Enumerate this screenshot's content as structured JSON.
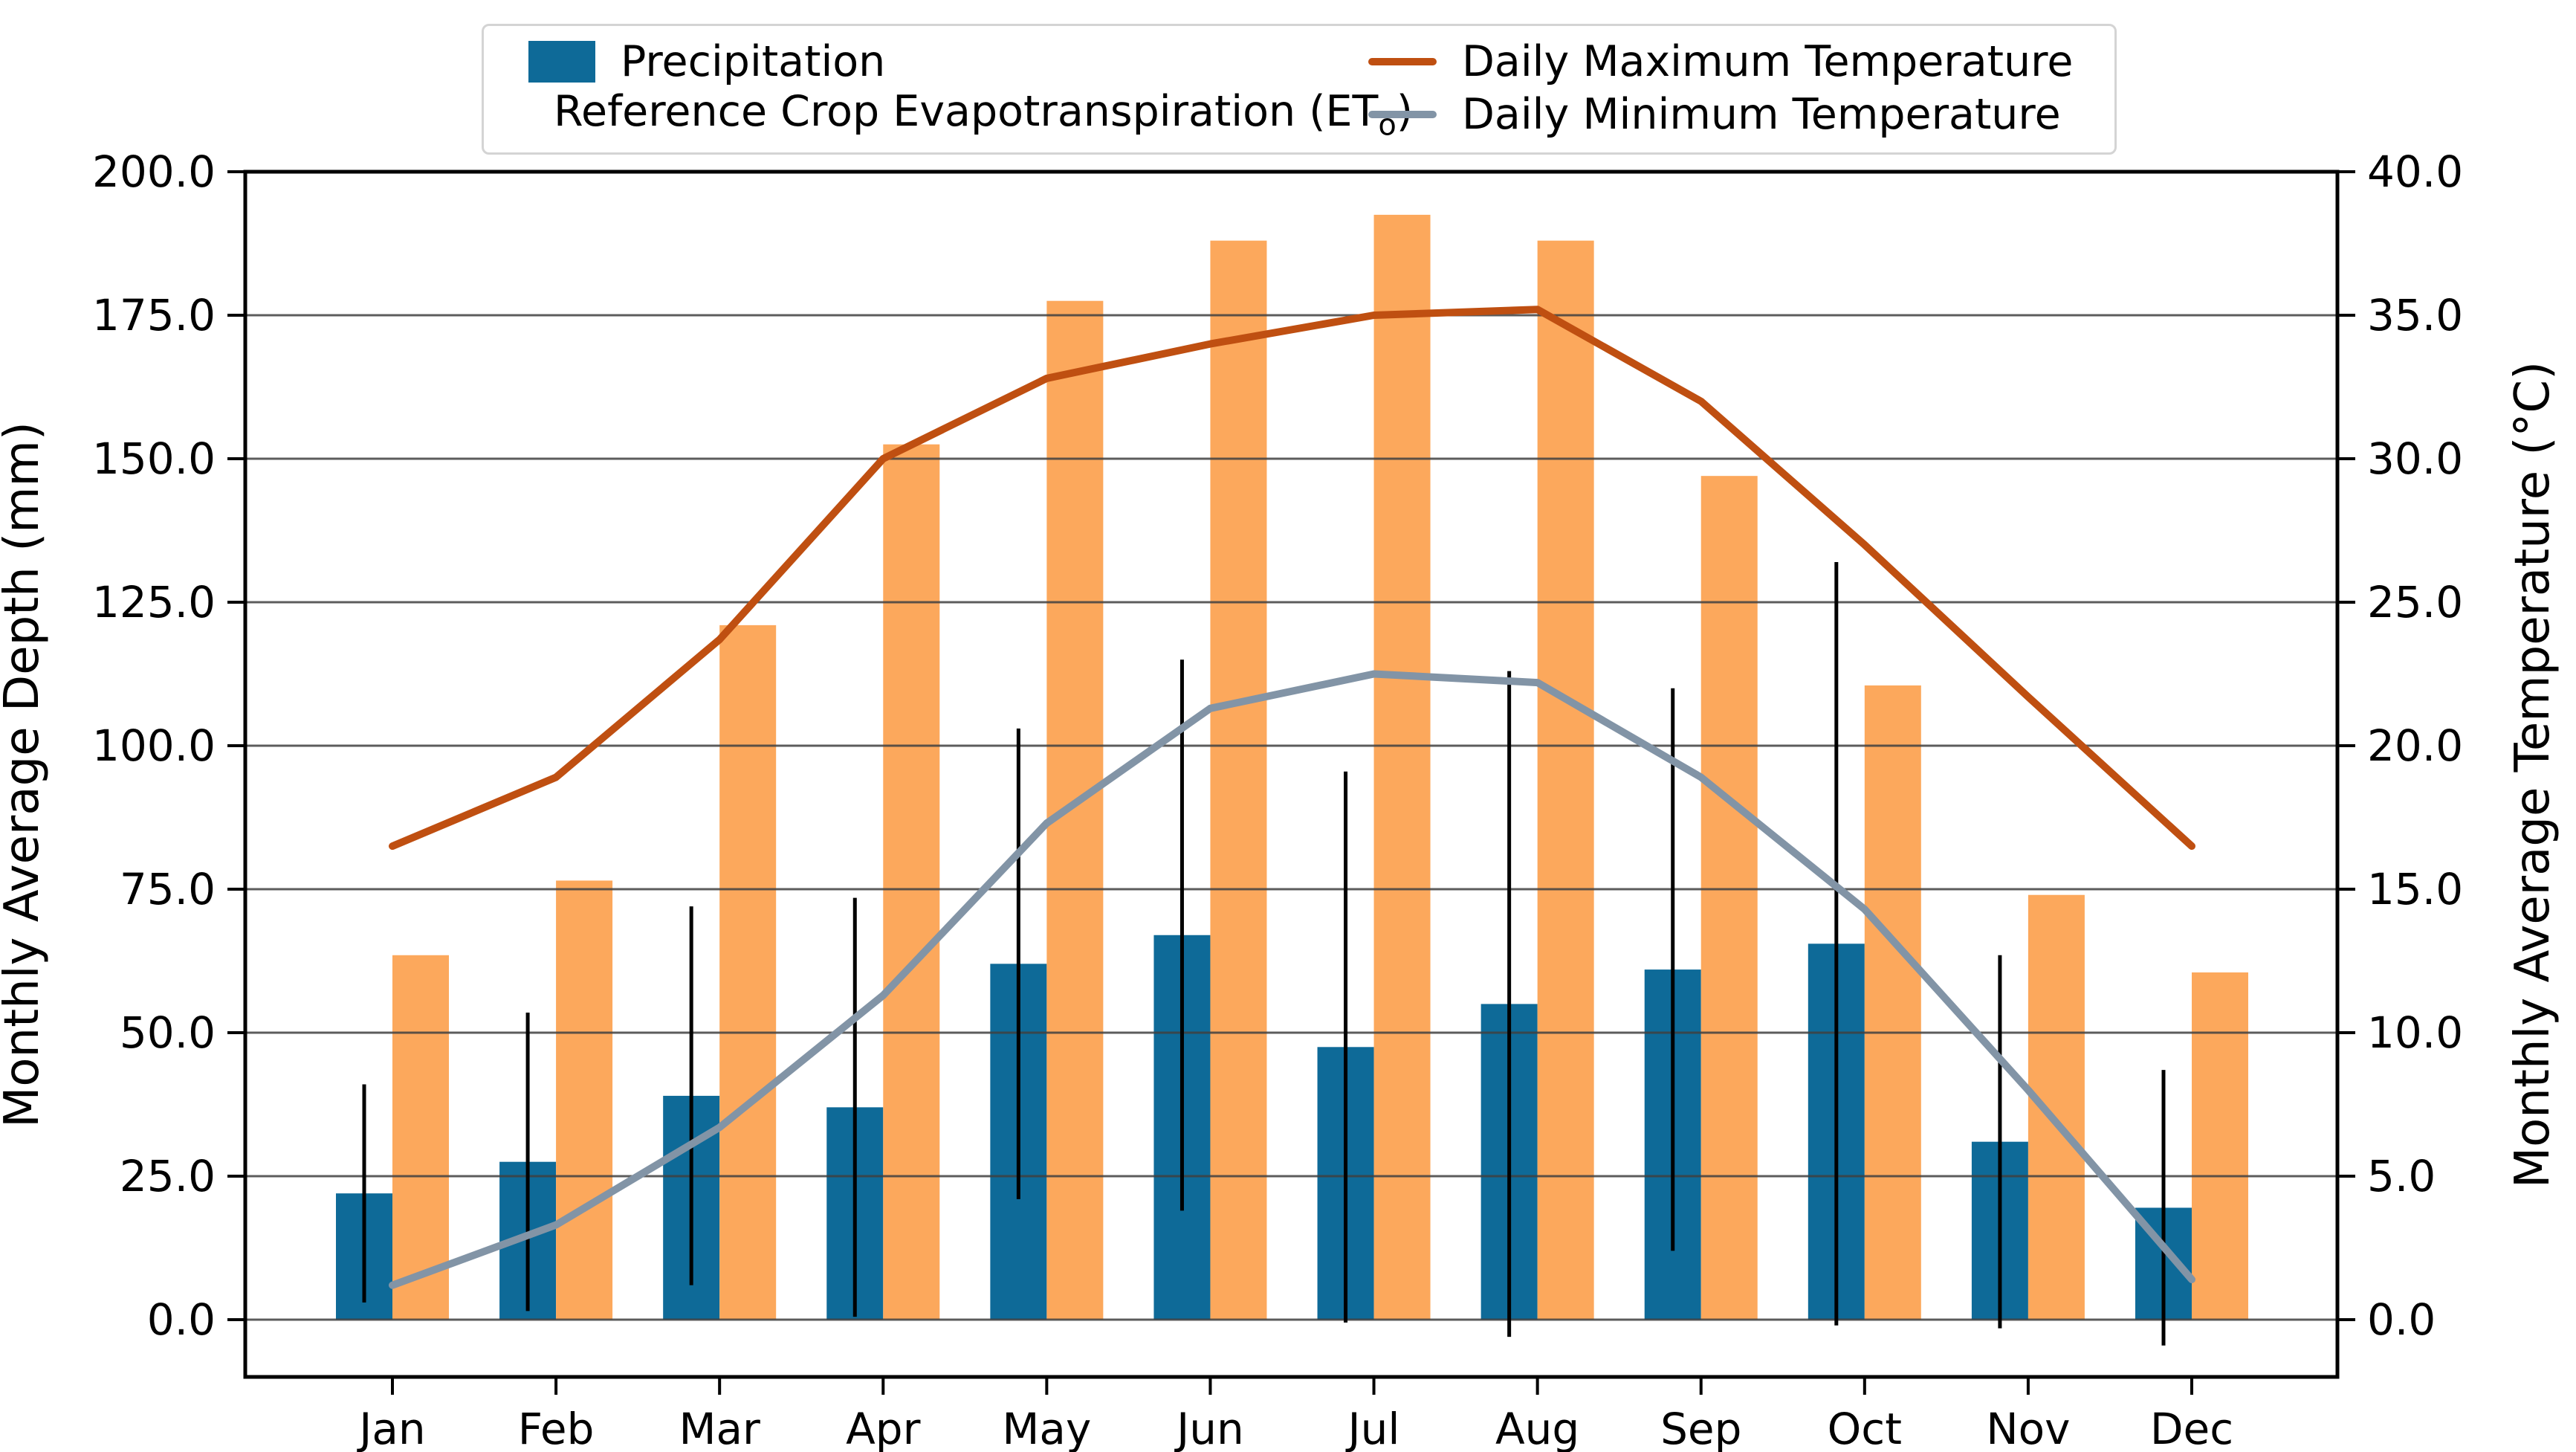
{
  "legend": {
    "precip_label": "Precipitation",
    "eto_label_pre": "Reference Crop Evapotranspiration (ET",
    "eto_label_sub": "o",
    "eto_label_post": ")",
    "tmax_label": "Daily Maximum Temperature",
    "tmin_label": "Daily Minimum Temperature"
  },
  "axes": {
    "ylabel_left": "Monthly Average Depth (mm)",
    "ylabel_right": "Monthly Average Temperature (°C)",
    "left_ticks": [
      "0.0",
      "25.0",
      "50.0",
      "75.0",
      "100.0",
      "125.0",
      "150.0",
      "175.0",
      "200.0"
    ],
    "right_ticks": [
      "0.0",
      "5.0",
      "10.0",
      "15.0",
      "20.0",
      "25.0",
      "30.0",
      "35.0",
      "40.0"
    ],
    "months": [
      "Jan",
      "Feb",
      "Mar",
      "Apr",
      "May",
      "Jun",
      "Jul",
      "Aug",
      "Sep",
      "Oct",
      "Nov",
      "Dec"
    ]
  },
  "style": {
    "precip_color": "#0e6a98",
    "eto_color": "#fca85c",
    "tmax_color": "#bf4f11",
    "tmin_color": "#8294a6",
    "grid_color": "#3f3f3f",
    "errorbar_color": "#000000",
    "spine_color": "#000000"
  },
  "chart_data": {
    "type": "bar",
    "subtype": "grouped-bars-with-dual-axis-lines",
    "categories": [
      "Jan",
      "Feb",
      "Mar",
      "Apr",
      "May",
      "Jun",
      "Jul",
      "Aug",
      "Sep",
      "Oct",
      "Nov",
      "Dec"
    ],
    "xlabel": "",
    "ylabel_left": "Monthly Average Depth (mm)",
    "ylabel_right": "Monthly Average Temperature (°C)",
    "ylim_left": [
      -10,
      200
    ],
    "ylim_right": [
      -2,
      40
    ],
    "grid": true,
    "grid_step_mm": 25,
    "legend_position": "top",
    "series": [
      {
        "name": "Precipitation",
        "type": "bar",
        "axis": "left",
        "units": "mm",
        "values": [
          22,
          27.5,
          39,
          37,
          62,
          67,
          47.5,
          55,
          61,
          65.5,
          31,
          19.5
        ],
        "error": [
          19,
          26,
          33,
          36.5,
          41,
          48,
          48,
          58,
          49,
          66.5,
          32.5,
          24
        ]
      },
      {
        "name": "Reference Crop Evapotranspiration (ETo)",
        "type": "bar",
        "axis": "left",
        "units": "mm",
        "values": [
          63.5,
          76.5,
          121,
          152.5,
          177.5,
          188,
          192.5,
          188,
          147,
          110.5,
          74,
          60.5
        ]
      },
      {
        "name": "Daily Maximum Temperature",
        "type": "line",
        "axis": "right",
        "units": "°C",
        "values": [
          16.5,
          18.9,
          23.7,
          30.0,
          32.8,
          34.0,
          35.0,
          35.2,
          32.0,
          27.0,
          21.7,
          16.5
        ]
      },
      {
        "name": "Daily Minimum Temperature",
        "type": "line",
        "axis": "right",
        "units": "°C",
        "values": [
          1.2,
          3.3,
          6.7,
          11.3,
          17.3,
          21.3,
          22.5,
          22.2,
          18.9,
          14.3,
          8.0,
          1.4
        ]
      }
    ]
  }
}
